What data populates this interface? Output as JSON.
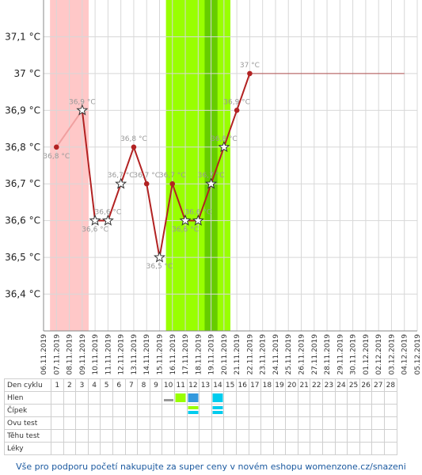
{
  "chart_data": {
    "type": "line",
    "ylim": [
      36.3,
      37.2
    ],
    "yticks": [
      36.4,
      36.5,
      36.6,
      36.7,
      36.8,
      36.9,
      37.0,
      37.1
    ],
    "ytick_labels": [
      "36,4 °C",
      "36,5 °C",
      "36,6 °C",
      "36,7 °C",
      "36,8 °C",
      "36,9 °C",
      "37 °C",
      "37,1 °C"
    ],
    "dates": [
      "06.11.2019",
      "07.11.2019",
      "08.11.2019",
      "09.11.2019",
      "10.11.2019",
      "11.11.2019",
      "12.11.2019",
      "13.11.2019",
      "14.11.2019",
      "15.11.2019",
      "16.11.2019",
      "17.11.2019",
      "18.11.2019",
      "19.11.2019",
      "20.11.2019",
      "21.11.2019",
      "22.11.2019",
      "23.11.2019",
      "24.11.2019",
      "25.11.2019",
      "26.11.2019",
      "27.11.2019",
      "28.11.2019",
      "29.11.2019",
      "30.11.2019",
      "01.12.2019",
      "02.12.2019",
      "03.12.2019",
      "04.12.2019",
      "05.12.2019"
    ],
    "series": [
      {
        "x": [
          "07.11.2019",
          "09.11.2019",
          "10.11.2019",
          "11.11.2019",
          "12.11.2019",
          "13.11.2019",
          "14.11.2019",
          "15.11.2019",
          "16.11.2019",
          "17.11.2019",
          "18.11.2019",
          "19.11.2019",
          "20.11.2019",
          "21.11.2019",
          "22.11.2019"
        ],
        "y": [
          36.8,
          36.9,
          36.6,
          36.6,
          36.7,
          36.8,
          36.7,
          36.5,
          36.7,
          36.6,
          36.6,
          36.7,
          36.8,
          36.9,
          37.0
        ],
        "labels": [
          "36,8 °C",
          "36,9 °C",
          "36,6 °C",
          "36,6 °C",
          "36,7 °C",
          "36,8 °C",
          "36,7 °C",
          "36,5 °C",
          "36,7 °C",
          "36,6 °C",
          "36,6 °C",
          "36,7 °C",
          "36,8 °C",
          "36,9 °C",
          "37 °C"
        ],
        "star_marker": [
          false,
          true,
          true,
          true,
          true,
          false,
          false,
          true,
          false,
          true,
          true,
          true,
          true,
          false,
          false
        ],
        "color": "#b22222",
        "light_color": "#f0a0a0"
      }
    ],
    "reference_line": {
      "y": 37.0,
      "from": "22.11.2019",
      "to": "04.12.2019",
      "color": "#b05050"
    },
    "bands": [
      {
        "from": "06.11.2019",
        "to": "09.11.2019",
        "color": "#ffc8c8"
      },
      {
        "from": "15.11.2019",
        "to": "20.11.2019",
        "color": "#99ff00"
      },
      {
        "from": "18.11.2019",
        "to": "19.11.2019",
        "color": "#66cc00"
      }
    ],
    "grid": true
  },
  "table": {
    "rows": [
      "Den cyklu",
      "Hlen",
      "Čípek",
      "Ovu test",
      "Těhu test",
      "Léky"
    ],
    "days": [
      "1",
      "2",
      "3",
      "4",
      "5",
      "6",
      "7",
      "8",
      "9",
      "10",
      "11",
      "12",
      "13",
      "14",
      "15",
      "16",
      "17",
      "18",
      "19",
      "20",
      "21",
      "22",
      "23",
      "24",
      "25",
      "26",
      "27",
      "28"
    ],
    "markers": [
      {
        "row": 1,
        "day": 10,
        "color": "#999999",
        "shape": "dash"
      },
      {
        "row": 1,
        "day": 11,
        "color": "#99ff00",
        "shape": "square"
      },
      {
        "row": 1,
        "day": 12,
        "color": "#3399dd",
        "shape": "square"
      },
      {
        "row": 1,
        "day": 14,
        "color": "#00ccee",
        "shape": "square"
      },
      {
        "row": 2,
        "day": 12,
        "color": "#99ff00",
        "shape": "bar-top"
      },
      {
        "row": 2,
        "day": 12,
        "color": "#00ccee",
        "shape": "bar-bottom"
      },
      {
        "row": 2,
        "day": 14,
        "color": "#00ccee",
        "shape": "bar-top"
      },
      {
        "row": 2,
        "day": 14,
        "color": "#00ccee",
        "shape": "bar-bottom"
      }
    ]
  },
  "footer": "Vše pro podporu početí nakupujte za super ceny v novém eshopu womenzone.cz/snazeni"
}
